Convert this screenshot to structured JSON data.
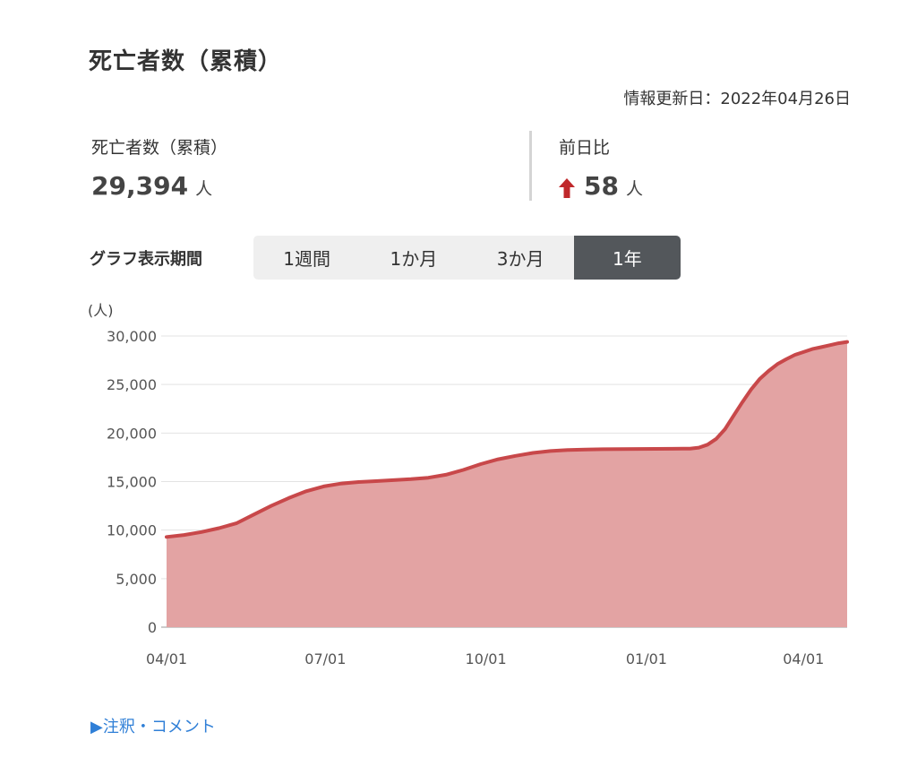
{
  "header": {
    "title": "死亡者数（累積）",
    "updated": "情報更新日：2022年04月26日"
  },
  "stats": {
    "total": {
      "label": "死亡者数（累積）",
      "value": "29,394",
      "unit": "人"
    },
    "diff": {
      "label": "前日比",
      "value": "58",
      "unit": "人",
      "direction": "up",
      "arrow_color": "#c0282b"
    }
  },
  "period": {
    "label": "グラフ表示期間",
    "options": [
      "1週間",
      "1か月",
      "3か月",
      "1年"
    ],
    "active_index": 3
  },
  "chart_data": {
    "type": "area",
    "ylabel": "(人)",
    "ylim": [
      0,
      30000
    ],
    "yticks": [
      "30,000",
      "25,000",
      "20,000",
      "15,000",
      "10,000",
      "5,000",
      "0"
    ],
    "ytick_values": [
      30000,
      25000,
      20000,
      15000,
      10000,
      5000,
      0
    ],
    "xticks": [
      "04/01",
      "07/01",
      "10/01",
      "01/01",
      "04/01"
    ],
    "xtick_days": [
      0,
      91,
      183,
      275,
      365
    ],
    "x_days_total": 390,
    "series": [
      {
        "color": "#c8484a",
        "fill": "#e3a3a3",
        "points": [
          [
            0,
            9300
          ],
          [
            10,
            9500
          ],
          [
            20,
            9800
          ],
          [
            30,
            10200
          ],
          [
            40,
            10700
          ],
          [
            50,
            11600
          ],
          [
            60,
            12500
          ],
          [
            70,
            13300
          ],
          [
            80,
            14000
          ],
          [
            90,
            14500
          ],
          [
            100,
            14800
          ],
          [
            110,
            14950
          ],
          [
            120,
            15050
          ],
          [
            130,
            15150
          ],
          [
            140,
            15250
          ],
          [
            150,
            15400
          ],
          [
            160,
            15700
          ],
          [
            170,
            16200
          ],
          [
            180,
            16800
          ],
          [
            190,
            17300
          ],
          [
            200,
            17650
          ],
          [
            210,
            17950
          ],
          [
            220,
            18150
          ],
          [
            230,
            18250
          ],
          [
            240,
            18300
          ],
          [
            250,
            18330
          ],
          [
            260,
            18350
          ],
          [
            270,
            18360
          ],
          [
            280,
            18370
          ],
          [
            290,
            18380
          ],
          [
            300,
            18400
          ],
          [
            305,
            18500
          ],
          [
            310,
            18800
          ],
          [
            315,
            19400
          ],
          [
            320,
            20400
          ],
          [
            325,
            21800
          ],
          [
            330,
            23200
          ],
          [
            335,
            24500
          ],
          [
            340,
            25600
          ],
          [
            345,
            26400
          ],
          [
            350,
            27100
          ],
          [
            355,
            27600
          ],
          [
            360,
            28050
          ],
          [
            365,
            28350
          ],
          [
            370,
            28650
          ],
          [
            375,
            28850
          ],
          [
            380,
            29050
          ],
          [
            385,
            29250
          ],
          [
            390,
            29394
          ]
        ]
      }
    ]
  },
  "footer": {
    "note_link": "▶注釈・コメント"
  }
}
